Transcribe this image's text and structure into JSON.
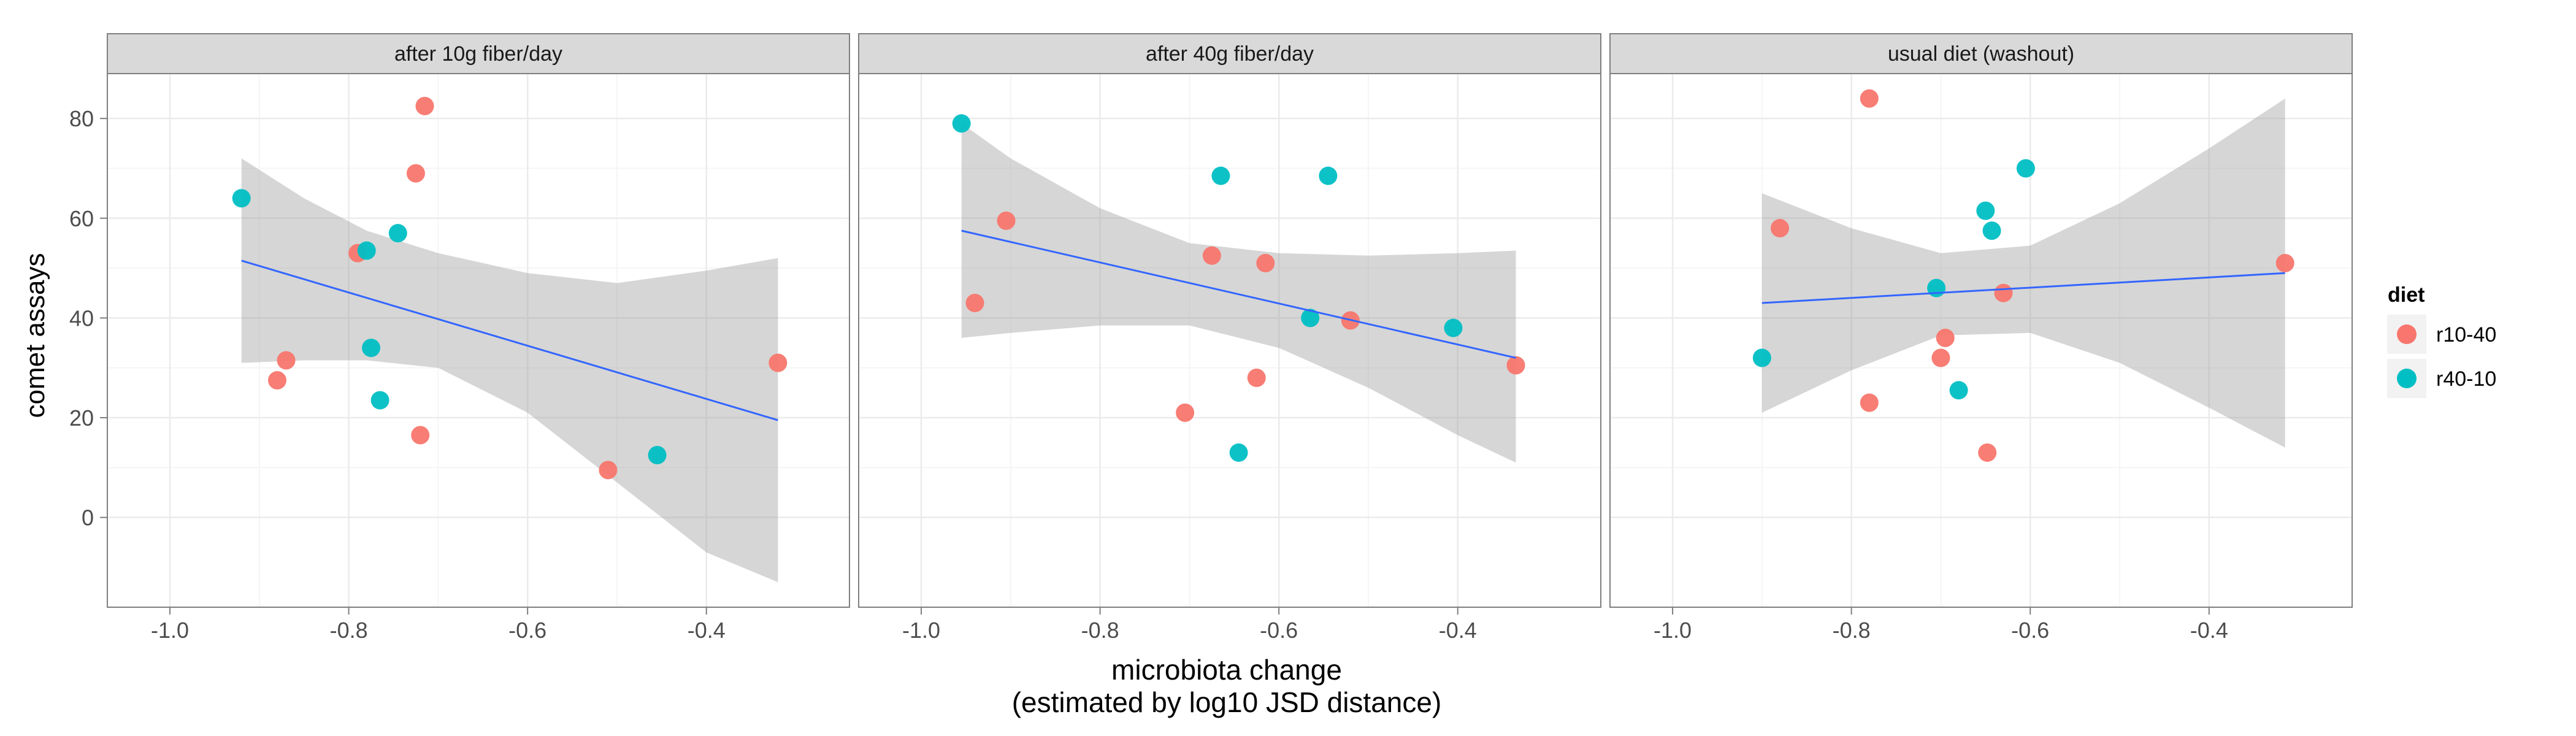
{
  "chart_data": {
    "type": "scatter",
    "xlabel_lines": [
      "microbiota change",
      "(estimated by log10 JSD distance)"
    ],
    "ylabel": "comet assays",
    "xlim": [
      -1.07,
      -0.24
    ],
    "ylim": [
      -18,
      89
    ],
    "x_ticks": [
      -1.0,
      -0.8,
      -0.6,
      -0.4
    ],
    "x_tick_labels": [
      "-1.0",
      "-0.8",
      "-0.6",
      "-0.4"
    ],
    "y_ticks": [
      0,
      20,
      40,
      60,
      80
    ],
    "y_tick_labels": [
      "0",
      "20",
      "40",
      "60",
      "80"
    ],
    "grid": true,
    "legend": {
      "title": "diet",
      "placement": "right",
      "entries": [
        {
          "label": "r10-40",
          "color": "#F8766D"
        },
        {
          "label": "r40-10",
          "color": "#00BFC4"
        }
      ]
    },
    "colors": {
      "r10-40": "#F8766D",
      "r40-10": "#00BFC4",
      "fit_line": "#3366FF",
      "ribbon": "#999999",
      "strip_bg": "#D9D9D9",
      "panel_border": "#7F7F7F"
    },
    "panels": [
      {
        "title": "after 10g fiber/day",
        "points": [
          {
            "x": -0.92,
            "y": 64,
            "diet": "r40-10"
          },
          {
            "x": -0.88,
            "y": 27.5,
            "diet": "r10-40"
          },
          {
            "x": -0.87,
            "y": 31.5,
            "diet": "r10-40"
          },
          {
            "x": -0.79,
            "y": 53,
            "diet": "r10-40"
          },
          {
            "x": -0.78,
            "y": 53.5,
            "diet": "r40-10"
          },
          {
            "x": -0.775,
            "y": 34,
            "diet": "r40-10"
          },
          {
            "x": -0.765,
            "y": 23.5,
            "diet": "r40-10"
          },
          {
            "x": -0.745,
            "y": 57,
            "diet": "r40-10"
          },
          {
            "x": -0.725,
            "y": 69,
            "diet": "r10-40"
          },
          {
            "x": -0.72,
            "y": 16.5,
            "diet": "r10-40"
          },
          {
            "x": -0.715,
            "y": 82.5,
            "diet": "r10-40"
          },
          {
            "x": -0.51,
            "y": 9.5,
            "diet": "r10-40"
          },
          {
            "x": -0.455,
            "y": 12.5,
            "diet": "r40-10"
          },
          {
            "x": -0.32,
            "y": 31,
            "diet": "r10-40"
          }
        ],
        "fit": {
          "x": [
            -0.92,
            -0.32
          ],
          "y": [
            51.5,
            19.5
          ]
        },
        "ribbon": {
          "x": [
            -0.92,
            -0.85,
            -0.78,
            -0.7,
            -0.6,
            -0.5,
            -0.4,
            -0.32
          ],
          "upper": [
            72,
            64,
            57.5,
            53,
            49,
            47,
            49.5,
            52
          ],
          "lower": [
            31,
            31.5,
            31.5,
            30,
            21,
            7,
            -7,
            -13
          ]
        }
      },
      {
        "title": "after 40g fiber/day",
        "points": [
          {
            "x": -0.955,
            "y": 79,
            "diet": "r40-10"
          },
          {
            "x": -0.94,
            "y": 43,
            "diet": "r10-40"
          },
          {
            "x": -0.905,
            "y": 59.5,
            "diet": "r10-40"
          },
          {
            "x": -0.705,
            "y": 21,
            "diet": "r10-40"
          },
          {
            "x": -0.675,
            "y": 52.5,
            "diet": "r10-40"
          },
          {
            "x": -0.665,
            "y": 68.5,
            "diet": "r40-10"
          },
          {
            "x": -0.645,
            "y": 13,
            "diet": "r40-10"
          },
          {
            "x": -0.625,
            "y": 28,
            "diet": "r10-40"
          },
          {
            "x": -0.615,
            "y": 51,
            "diet": "r10-40"
          },
          {
            "x": -0.565,
            "y": 40,
            "diet": "r40-10"
          },
          {
            "x": -0.545,
            "y": 68.5,
            "diet": "r40-10"
          },
          {
            "x": -0.52,
            "y": 39.5,
            "diet": "r10-40"
          },
          {
            "x": -0.405,
            "y": 38,
            "diet": "r40-10"
          },
          {
            "x": -0.335,
            "y": 30.5,
            "diet": "r10-40"
          }
        ],
        "fit": {
          "x": [
            -0.955,
            -0.335
          ],
          "y": [
            57.5,
            32
          ]
        },
        "ribbon": {
          "x": [
            -0.955,
            -0.9,
            -0.8,
            -0.7,
            -0.6,
            -0.5,
            -0.4,
            -0.335
          ],
          "upper": [
            79,
            72,
            62,
            55,
            53,
            52.5,
            53,
            53.5
          ],
          "lower": [
            36,
            37,
            38.5,
            38.5,
            34,
            26,
            16.5,
            11
          ]
        }
      },
      {
        "title": "usual diet (washout)",
        "points": [
          {
            "x": -0.9,
            "y": 32,
            "diet": "r40-10"
          },
          {
            "x": -0.88,
            "y": 58,
            "diet": "r10-40"
          },
          {
            "x": -0.78,
            "y": 84,
            "diet": "r10-40"
          },
          {
            "x": -0.78,
            "y": 23,
            "diet": "r10-40"
          },
          {
            "x": -0.705,
            "y": 46,
            "diet": "r40-10"
          },
          {
            "x": -0.7,
            "y": 32,
            "diet": "r10-40"
          },
          {
            "x": -0.695,
            "y": 36,
            "diet": "r10-40"
          },
          {
            "x": -0.68,
            "y": 25.5,
            "diet": "r40-10"
          },
          {
            "x": -0.65,
            "y": 61.5,
            "diet": "r40-10"
          },
          {
            "x": -0.648,
            "y": 13,
            "diet": "r10-40"
          },
          {
            "x": -0.643,
            "y": 57.5,
            "diet": "r40-10"
          },
          {
            "x": -0.63,
            "y": 45,
            "diet": "r10-40"
          },
          {
            "x": -0.605,
            "y": 70,
            "diet": "r40-10"
          },
          {
            "x": -0.315,
            "y": 51,
            "diet": "r10-40"
          }
        ],
        "fit": {
          "x": [
            -0.9,
            -0.315
          ],
          "y": [
            43,
            49
          ]
        },
        "ribbon": {
          "x": [
            -0.9,
            -0.8,
            -0.7,
            -0.6,
            -0.5,
            -0.4,
            -0.315
          ],
          "upper": [
            65,
            58,
            53,
            54.5,
            63,
            74,
            84
          ],
          "lower": [
            21,
            29.5,
            36.5,
            37,
            31,
            22,
            14
          ]
        }
      }
    ]
  }
}
